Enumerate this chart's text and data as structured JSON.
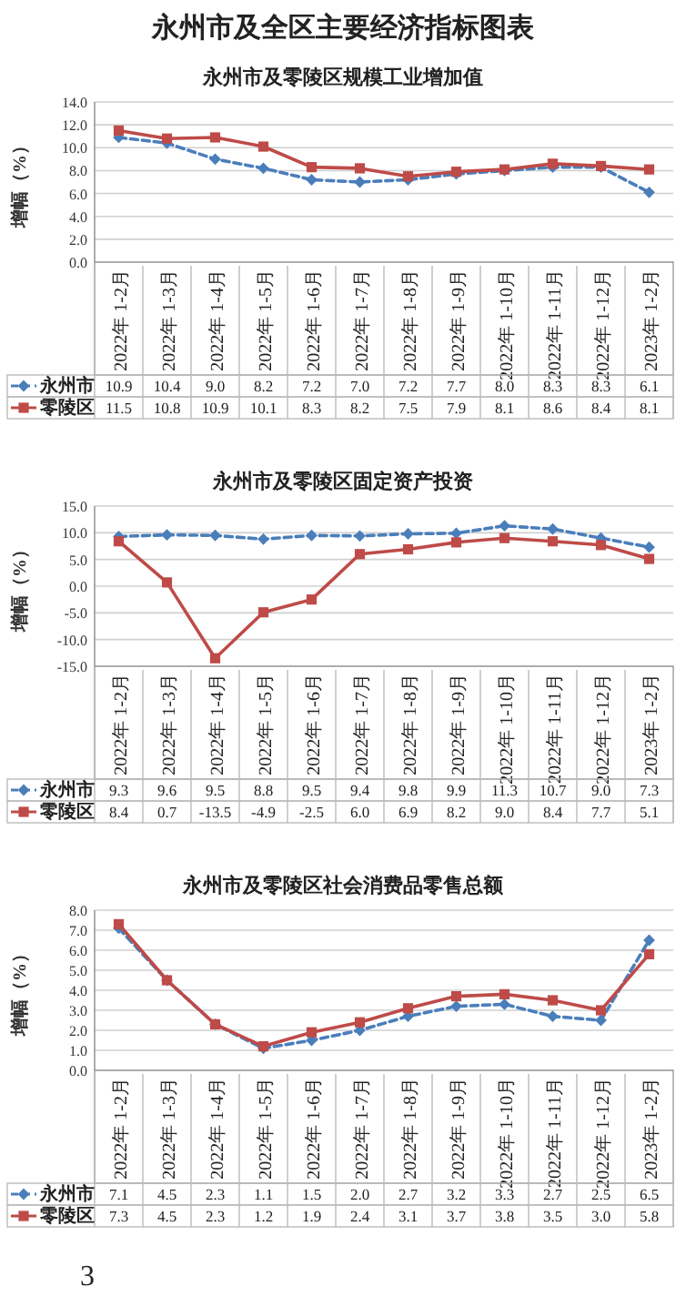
{
  "chart_data": [
    {
      "type": "line",
      "title": "永州市及零陵区规模工业增加值",
      "ylabel": "增幅（%）",
      "annotations": [
        "永州市及全区主要经济指标图表"
      ],
      "categories": [
        "2022年 1-2月",
        "2022年 1-3月",
        "2022年 1-4月",
        "2022年 1-5月",
        "2022年 1-6月",
        "2022年 1-7月",
        "2022年 1-8月",
        "2022年 1-9月",
        "2022年 1-10月",
        "2022年 1-11月",
        "2022年 1-12月",
        "2023年 1-2月"
      ],
      "series": [
        {
          "name": "永州市",
          "color": "#4a7ebb",
          "line_style": "dashed",
          "marker": "diamond",
          "values": [
            10.9,
            10.4,
            9.0,
            8.2,
            7.2,
            7.0,
            7.2,
            7.7,
            8.0,
            8.3,
            8.3,
            6.1
          ],
          "value_labels": [
            "10.9",
            "10.4",
            "9.0",
            "8.2",
            "7.2",
            "7.0",
            "7.2",
            "7.7",
            "8.0",
            "8.3",
            "8.3",
            "6.1"
          ]
        },
        {
          "name": "零陵区",
          "color": "#be4b48",
          "line_style": "solid",
          "marker": "square",
          "values": [
            11.5,
            10.8,
            10.9,
            10.1,
            8.3,
            8.2,
            7.5,
            7.9,
            8.1,
            8.6,
            8.4,
            8.1
          ],
          "value_labels": [
            "11.5",
            "10.8",
            "10.9",
            "10.1",
            "8.3",
            "8.2",
            "7.5",
            "7.9",
            "8.1",
            "8.6",
            "8.4",
            "8.1"
          ]
        }
      ],
      "ylim": [
        0,
        14
      ],
      "yticks": [
        {
          "value": 0,
          "label": "0.0"
        },
        {
          "value": 2,
          "label": "2.0"
        },
        {
          "value": 4,
          "label": "4.0"
        },
        {
          "value": 6,
          "label": "6.0"
        },
        {
          "value": 8,
          "label": "8.0"
        },
        {
          "value": 10,
          "label": "10.0"
        },
        {
          "value": 12,
          "label": "12.0"
        },
        {
          "value": 14,
          "label": "14.0"
        }
      ],
      "grid": "y",
      "legend": "bottom"
    },
    {
      "type": "line",
      "title": "永州市及零陵区固定资产投资",
      "ylabel": "增幅（%）",
      "categories": [
        "2022年 1-2月",
        "2022年 1-3月",
        "2022年 1-4月",
        "2022年 1-5月",
        "2022年 1-6月",
        "2022年 1-7月",
        "2022年 1-8月",
        "2022年 1-9月",
        "2022年 1-10月",
        "2022年 1-11月",
        "2022年 1-12月",
        "2023年 1-2月"
      ],
      "series": [
        {
          "name": "永州市",
          "color": "#4a7ebb",
          "line_style": "dashed",
          "marker": "diamond",
          "values": [
            9.3,
            9.6,
            9.5,
            8.8,
            9.5,
            9.4,
            9.8,
            9.9,
            11.3,
            10.7,
            9.0,
            7.3
          ],
          "value_labels": [
            "9.3",
            "9.6",
            "9.5",
            "8.8",
            "9.5",
            "9.4",
            "9.8",
            "9.9",
            "11.3",
            "10.7",
            "9.0",
            "7.3"
          ]
        },
        {
          "name": "零陵区",
          "color": "#be4b48",
          "line_style": "solid",
          "marker": "square",
          "values": [
            8.4,
            0.7,
            -13.5,
            -4.9,
            -2.5,
            6.0,
            6.9,
            8.2,
            9.0,
            8.4,
            7.7,
            5.1
          ],
          "value_labels": [
            "8.4",
            "0.7",
            "-13.5",
            "-4.9",
            "-2.5",
            "6.0",
            "6.9",
            "8.2",
            "9.0",
            "8.4",
            "7.7",
            "5.1"
          ]
        }
      ],
      "ylim": [
        -15,
        15
      ],
      "yticks": [
        {
          "value": -15,
          "label": "-15.0"
        },
        {
          "value": -10,
          "label": "-10.0"
        },
        {
          "value": -5,
          "label": "-5.0"
        },
        {
          "value": 0,
          "label": "0.0"
        },
        {
          "value": 5,
          "label": "5.0"
        },
        {
          "value": 10,
          "label": "10.0"
        },
        {
          "value": 15,
          "label": "15.0"
        }
      ],
      "grid": "y",
      "legend": "bottom"
    },
    {
      "type": "line",
      "title": "永州市及零陵区社会消费品零售总额",
      "ylabel": "增幅（%）",
      "annotations": [
        "3"
      ],
      "categories": [
        "2022年 1-2月",
        "2022年 1-3月",
        "2022年 1-4月",
        "2022年 1-5月",
        "2022年 1-6月",
        "2022年 1-7月",
        "2022年 1-8月",
        "2022年 1-9月",
        "2022年 1-10月",
        "2022年 1-11月",
        "2022年 1-12月",
        "2023年 1-2月"
      ],
      "series": [
        {
          "name": "永州市",
          "color": "#4a7ebb",
          "line_style": "dashed",
          "marker": "diamond",
          "values": [
            7.1,
            4.5,
            2.3,
            1.1,
            1.5,
            2.0,
            2.7,
            3.2,
            3.3,
            2.7,
            2.5,
            6.5
          ],
          "value_labels": [
            "7.1",
            "4.5",
            "2.3",
            "1.1",
            "1.5",
            "2.0",
            "2.7",
            "3.2",
            "3.3",
            "2.7",
            "2.5",
            "6.5"
          ]
        },
        {
          "name": "零陵区",
          "color": "#be4b48",
          "line_style": "solid",
          "marker": "square",
          "values": [
            7.3,
            4.5,
            2.3,
            1.2,
            1.9,
            2.4,
            3.1,
            3.7,
            3.8,
            3.5,
            3.0,
            5.8
          ],
          "value_labels": [
            "7.3",
            "4.5",
            "2.3",
            "1.2",
            "1.9",
            "2.4",
            "3.1",
            "3.7",
            "3.8",
            "3.5",
            "3.0",
            "5.8"
          ]
        }
      ],
      "ylim": [
        0,
        8
      ],
      "yticks": [
        {
          "value": 0,
          "label": "0.0"
        },
        {
          "value": 1,
          "label": "1.0"
        },
        {
          "value": 2,
          "label": "2.0"
        },
        {
          "value": 3,
          "label": "3.0"
        },
        {
          "value": 4,
          "label": "4.0"
        },
        {
          "value": 5,
          "label": "5.0"
        },
        {
          "value": 6,
          "label": "6.0"
        },
        {
          "value": 7,
          "label": "7.0"
        },
        {
          "value": 8,
          "label": "8.0"
        }
      ],
      "grid": "y",
      "legend": "bottom"
    }
  ]
}
